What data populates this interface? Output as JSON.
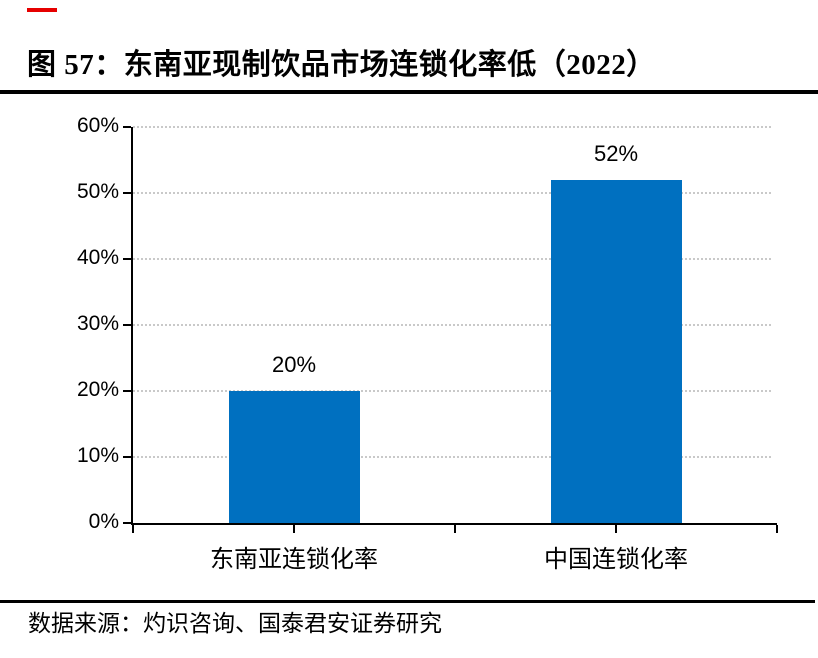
{
  "header": {
    "figure_title": "图 57：东南亚现制饮品市场连锁化率低（2022）"
  },
  "accents": {
    "top_dash_color": "#e60000",
    "rule_color": "#000000"
  },
  "chart_data": {
    "type": "bar",
    "title": "东南亚现制饮品市场连锁化率低（2022）",
    "categories": [
      "东南亚连锁化率",
      "中国连锁化率"
    ],
    "values": [
      20,
      52
    ],
    "data_labels": [
      "20%",
      "52%"
    ],
    "unit": "%",
    "ylim": [
      0,
      60
    ],
    "y_tick_values": [
      0,
      10,
      20,
      30,
      40,
      50,
      60
    ],
    "y_tick_labels": [
      "0%",
      "10%",
      "20%",
      "30%",
      "40%",
      "50%",
      "60%"
    ],
    "grid": "horizontal-dotted",
    "legend": "none",
    "xlabel": "",
    "ylabel": "",
    "bar_color": "#0070c0",
    "gridline_color": "#c9c9c9",
    "axis_color": "#000000"
  },
  "footer": {
    "source": "数据来源：灼识咨询、国泰君安证券研究"
  }
}
